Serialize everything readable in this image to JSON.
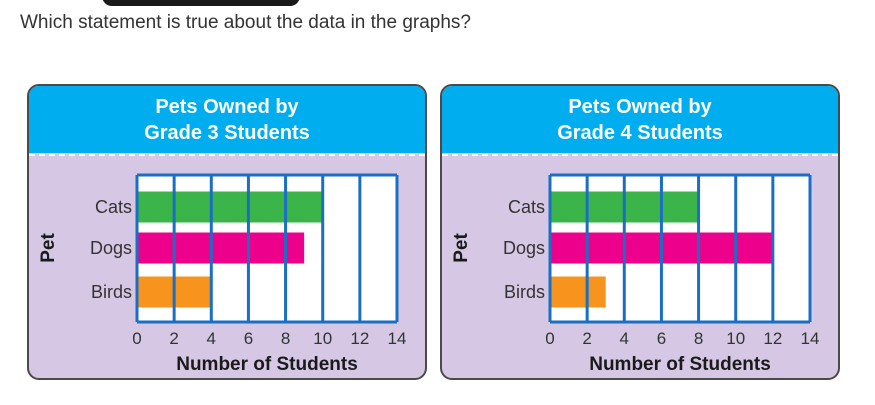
{
  "question": "Which statement is true about the data in the graphs?",
  "colors": {
    "header": "#00aeef",
    "panel_bg": "#d6c8e4",
    "grid": "#1a6fc4",
    "cats": "#3bb54a",
    "dogs": "#ec008c",
    "birds": "#f7941d"
  },
  "chart_data": [
    {
      "type": "bar",
      "orientation": "horizontal",
      "title_lines": [
        "Pets Owned by",
        "Grade 3 Students"
      ],
      "categories": [
        "Cats",
        "Dogs",
        "Birds"
      ],
      "values": [
        10,
        9,
        4
      ],
      "xlabel": "Number of Students",
      "ylabel": "Pet",
      "xticks": [
        "0",
        "2",
        "4",
        "6",
        "8",
        "10",
        "12",
        "14"
      ],
      "xlim": [
        0,
        14
      ]
    },
    {
      "type": "bar",
      "orientation": "horizontal",
      "title_lines": [
        "Pets Owned by",
        "Grade 4 Students"
      ],
      "categories": [
        "Cats",
        "Dogs",
        "Birds"
      ],
      "values": [
        8,
        12,
        3
      ],
      "xlabel": "Number of Students",
      "ylabel": "Pet",
      "xticks": [
        "0",
        "2",
        "4",
        "6",
        "8",
        "10",
        "12",
        "14"
      ],
      "xlim": [
        0,
        14
      ]
    }
  ]
}
